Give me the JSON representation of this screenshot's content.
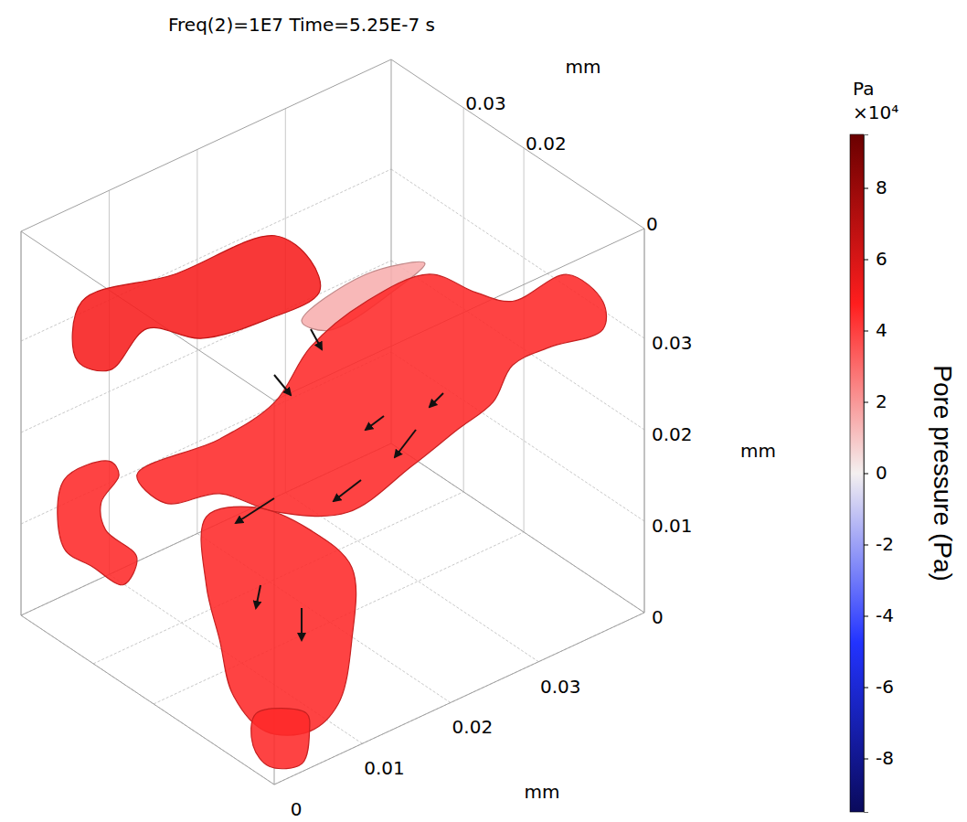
{
  "chart_data": {
    "type": "surface3d",
    "title": "Freq(2)=1E7 Time=5.25E-7 s",
    "x_label": "mm",
    "y_label": "mm",
    "z_label": "mm",
    "xlim": [
      0,
      0.042
    ],
    "xticks": [
      0,
      0.01,
      0.02,
      0.03
    ],
    "ylim": [
      0,
      0.042
    ],
    "yticks": [
      0,
      0.02,
      0.03
    ],
    "zlim": [
      0,
      0.042
    ],
    "zticks": [
      0,
      0.01,
      0.02,
      0.03
    ],
    "grid": true,
    "colorbar": {
      "unit": "Pa",
      "multiplier": "×10⁴",
      "label": "Pore pressure (Pa)",
      "range": [
        -95000,
        95000
      ],
      "ticks": [
        {
          "value": 80000,
          "label": "8"
        },
        {
          "value": 60000,
          "label": "6"
        },
        {
          "value": 40000,
          "label": "4"
        },
        {
          "value": 20000,
          "label": "2"
        },
        {
          "value": 0,
          "label": "0"
        },
        {
          "value": -20000,
          "label": "-2"
        },
        {
          "value": -40000,
          "label": "-4"
        },
        {
          "value": -60000,
          "label": "-6"
        },
        {
          "value": -80000,
          "label": "-8"
        }
      ]
    },
    "pores": [
      {
        "pressure": 50000,
        "outline": [
          [
            0.0041,
            0.0379,
            0.0343
          ],
          [
            0.0103,
            0.0317,
            0.0372
          ],
          [
            0.0171,
            0.0249,
            0.0414
          ],
          [
            0.0195,
            0.0225,
            0.0387
          ],
          [
            0.0201,
            0.0219,
            0.0352
          ],
          [
            0.0165,
            0.0255,
            0.0322
          ],
          [
            0.0121,
            0.0299,
            0.0302
          ],
          [
            0.0085,
            0.0335,
            0.0313
          ],
          [
            0.006,
            0.036,
            0.0268
          ],
          [
            0.0038,
            0.0382,
            0.0278
          ]
        ]
      },
      {
        "pressure": 15000,
        "outline": [
          [
            0.0181,
            0.0219,
            0.0329
          ],
          [
            0.0224,
            0.0176,
            0.038
          ],
          [
            0.0264,
            0.0136,
            0.0392
          ],
          [
            0.0243,
            0.0157,
            0.0362
          ],
          [
            0.0199,
            0.0201,
            0.0319
          ]
        ]
      },
      {
        "pressure": 45000,
        "outline": [
          [
            0.007,
            0.033,
            0.0162
          ],
          [
            0.0126,
            0.0274,
            0.0201
          ],
          [
            0.0163,
            0.0237,
            0.0241
          ],
          [
            0.0187,
            0.0213,
            0.0301
          ],
          [
            0.0224,
            0.0176,
            0.035
          ],
          [
            0.0267,
            0.0133,
            0.038
          ],
          [
            0.0298,
            0.0102,
            0.036
          ],
          [
            0.0323,
            0.0077,
            0.035
          ],
          [
            0.036,
            0.004,
            0.0379
          ],
          [
            0.0384,
            0.0016,
            0.0349
          ],
          [
            0.0384,
            0.0016,
            0.0319
          ],
          [
            0.0347,
            0.0053,
            0.0299
          ],
          [
            0.0323,
            0.0077,
            0.028
          ],
          [
            0.031,
            0.009,
            0.024
          ],
          [
            0.0286,
            0.0114,
            0.021
          ],
          [
            0.0255,
            0.0145,
            0.017
          ],
          [
            0.0212,
            0.0188,
            0.012
          ],
          [
            0.0163,
            0.0237,
            0.0121
          ],
          [
            0.0126,
            0.0274,
            0.0141
          ],
          [
            0.0089,
            0.0311,
            0.0131
          ]
        ]
      },
      {
        "pressure": 45000,
        "outline": [
          [
            0.0029,
            0.0391,
            0.0148
          ],
          [
            0.006,
            0.036,
            0.0168
          ],
          [
            0.0066,
            0.0354,
            0.0153
          ],
          [
            0.0054,
            0.0366,
            0.0123
          ],
          [
            0.0057,
            0.0363,
            0.0093
          ],
          [
            0.0078,
            0.0342,
            0.0063
          ],
          [
            0.0069,
            0.0351,
            0.0033
          ],
          [
            0.0048,
            0.0372,
            0.0053
          ],
          [
            0.0029,
            0.0391,
            0.0073
          ]
        ]
      },
      {
        "pressure": 45000,
        "outline": [
          [
            0.0003,
            0.0117,
            0.024
          ],
          [
            0.0036,
            0.0084,
            0.025
          ],
          [
            0.0073,
            0.0047,
            0.0225
          ],
          [
            0.0101,
            0.0019,
            0.0184
          ],
          [
            0.0101,
            0.0019,
            0.0104
          ],
          [
            0.0092,
            0.0028,
            0.0035
          ],
          [
            0.0073,
            0.0047,
            0.0005
          ],
          [
            0.0043,
            0.0077,
            0.0005
          ],
          [
            0.0021,
            0.0099,
            0.0045
          ],
          [
            0.0012,
            0.0108,
            0.0105
          ],
          [
            0.0003,
            0.0117,
            0.0165
          ]
        ]
      },
      {
        "pressure": 45000,
        "outline": [
          [
            0.0004,
            0.0036,
            0.006
          ],
          [
            0.0038,
            0.0002,
            0.006
          ],
          [
            0.004,
            0.0,
            0.004
          ],
          [
            0.0035,
            0.0005,
            0.0005
          ],
          [
            0.0013,
            0.0027,
            0.0002
          ],
          [
            0.0002,
            0.0038,
            0.0025
          ]
        ]
      }
    ]
  }
}
